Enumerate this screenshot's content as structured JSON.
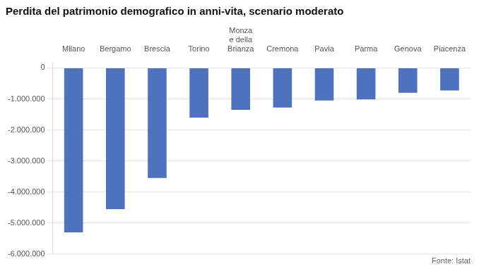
{
  "chart_data": {
    "type": "bar",
    "title": "Perdita del patrimonio demografico in anni-vita, scenario moderato",
    "source": "Fonte: Istat",
    "categories": [
      "Milano",
      "Bergamo",
      "Brescia",
      "Torino",
      "Monza\ne della\nBrianza",
      "Cremona",
      "Pavia",
      "Parma",
      "Genova",
      "Piacenza"
    ],
    "values": [
      -5300000,
      -4550000,
      -3550000,
      -1600000,
      -1350000,
      -1280000,
      -1050000,
      -1020000,
      -800000,
      -730000
    ],
    "color": "#4f72bc",
    "ylim": [
      -6000000,
      200000
    ],
    "yticks": [
      0,
      {
        "value": -1000000,
        "label": "-1.000.000"
      },
      {
        "value": -2000000,
        "label": "-2.000.000"
      },
      {
        "value": -3000000,
        "label": "-3.000.000"
      },
      {
        "value": -4000000,
        "label": "-4.000.000"
      },
      {
        "value": -5000000,
        "label": "-5.000.000"
      },
      {
        "value": -6000000,
        "label": "-6.000.000"
      }
    ],
    "grid": true
  }
}
